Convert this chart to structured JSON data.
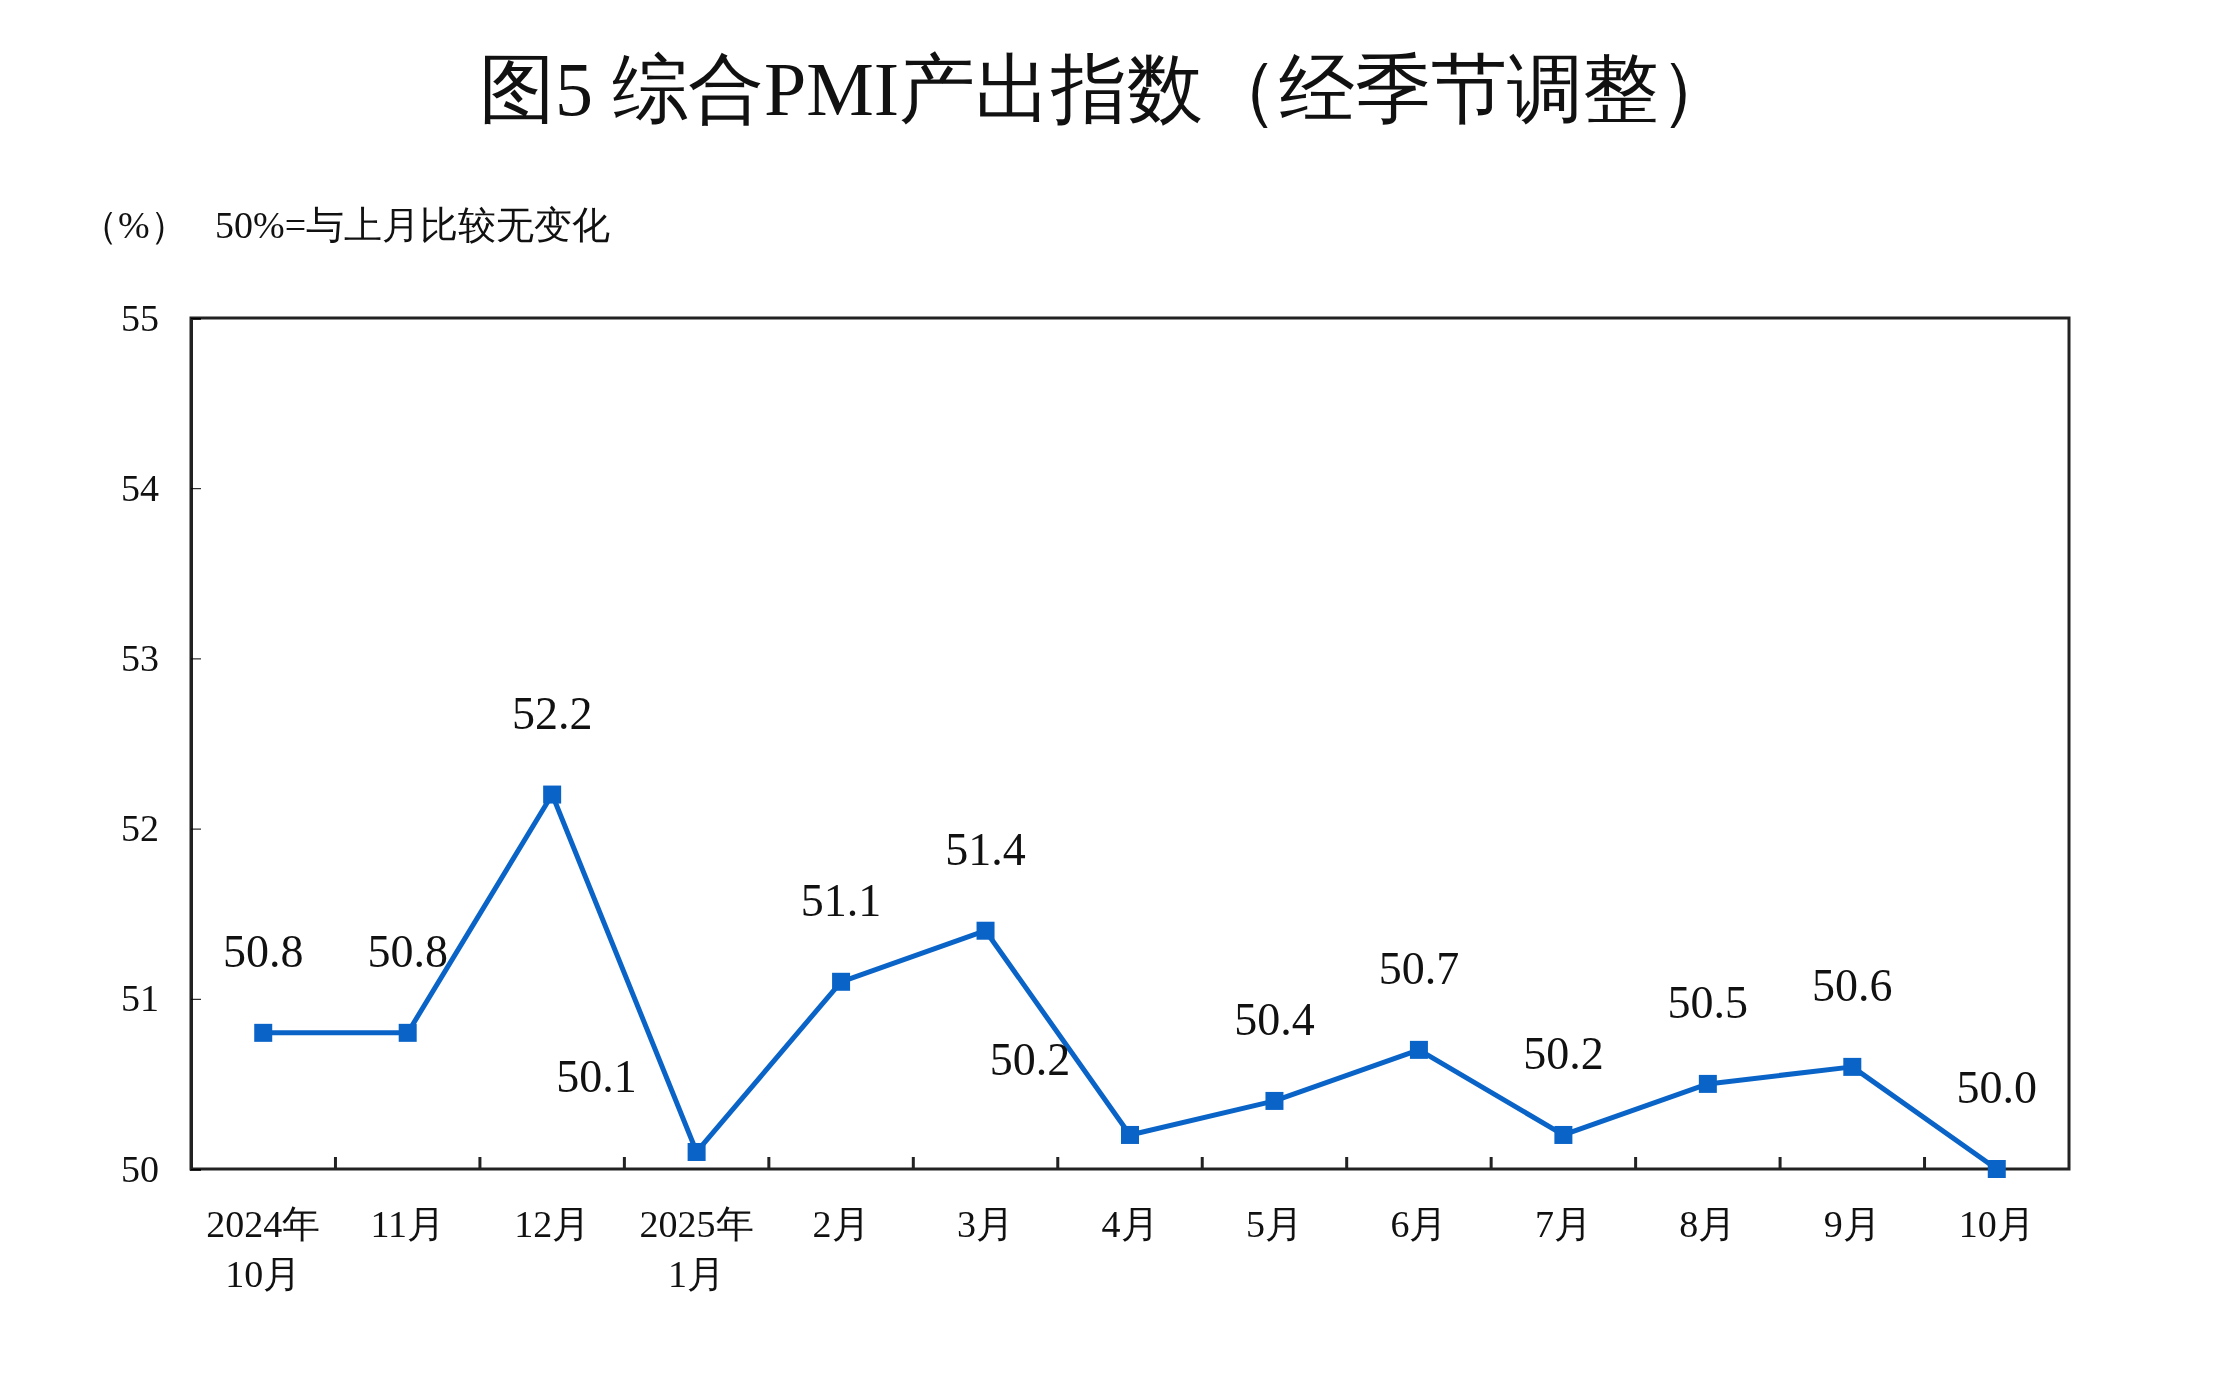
{
  "chart_data": {
    "type": "line",
    "title": "图5  综合PMI产出指数（经季节调整）",
    "ylabel": "（%）",
    "annotations": [
      "50%=与上月比较无变化"
    ],
    "categories": [
      "2024年\n10月",
      "11月",
      "12月",
      "2025年\n1月",
      "2月",
      "3月",
      "4月",
      "5月",
      "6月",
      "7月",
      "8月",
      "9月",
      "10月"
    ],
    "series": [
      {
        "color": "#0a64c8",
        "values": [
          50.8,
          50.8,
          52.2,
          50.1,
          51.1,
          51.4,
          50.2,
          50.4,
          50.7,
          50.2,
          50.5,
          50.6,
          50.0
        ],
        "value_labels": [
          "50.8",
          "50.8",
          "52.2",
          "50.1",
          "51.1",
          "51.4",
          "50.2",
          "50.4",
          "50.7",
          "50.2",
          "50.5",
          "50.6",
          "50.0"
        ]
      }
    ],
    "ylim": [
      50,
      55
    ],
    "yticks": [
      50,
      51,
      52,
      53,
      54,
      55
    ],
    "marker": "square",
    "line_style": "solid",
    "grid": false
  }
}
